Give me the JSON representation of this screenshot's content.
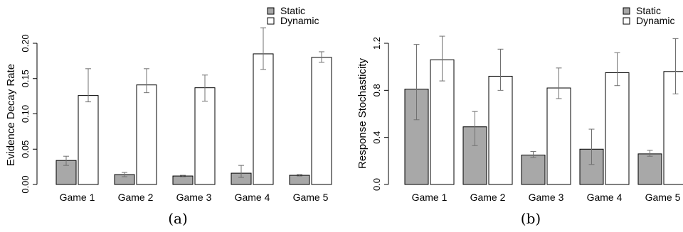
{
  "colors": {
    "static": "#a8a8a8",
    "dynamic": "#ffffff",
    "stroke": "#000000",
    "error": "#707070"
  },
  "chart_data": [
    {
      "type": "bar",
      "caption": "(a)",
      "ylabel": "Evidence Decay Rate",
      "categories": [
        "Game 1",
        "Game 2",
        "Game 3",
        "Game 4",
        "Game 5"
      ],
      "ylim": [
        0,
        0.2
      ],
      "yticks": [
        0.0,
        0.05,
        0.1,
        0.15,
        0.2
      ],
      "ytick_labels": [
        "0.00",
        "0.05",
        "0.10",
        "0.15",
        "0.20"
      ],
      "legend": {
        "placement": "top-right",
        "entries": [
          "Static",
          "Dynamic"
        ]
      },
      "series": [
        {
          "name": "Static",
          "values": [
            0.034,
            0.014,
            0.012,
            0.016,
            0.013
          ],
          "err_low": [
            0.027,
            0.011,
            0.011,
            0.01,
            0.012
          ],
          "err_high": [
            0.04,
            0.017,
            0.013,
            0.027,
            0.014
          ]
        },
        {
          "name": "Dynamic",
          "values": [
            0.126,
            0.141,
            0.137,
            0.185,
            0.18
          ],
          "err_low": [
            0.117,
            0.13,
            0.118,
            0.163,
            0.173
          ],
          "err_high": [
            0.164,
            0.164,
            0.155,
            0.222,
            0.188
          ]
        }
      ]
    },
    {
      "type": "bar",
      "caption": "(b)",
      "ylabel": "Response Stochasticity",
      "categories": [
        "Game 1",
        "Game 2",
        "Game 3",
        "Game 4",
        "Game 5"
      ],
      "ylim": [
        0,
        1.2
      ],
      "yticks": [
        0.0,
        0.4,
        0.8,
        1.2
      ],
      "ytick_labels": [
        "0.0",
        "0.4",
        "0.8",
        "1.2"
      ],
      "legend": {
        "placement": "top-right",
        "entries": [
          "Static",
          "Dynamic"
        ]
      },
      "series": [
        {
          "name": "Static",
          "values": [
            0.81,
            0.49,
            0.25,
            0.3,
            0.26
          ],
          "err_low": [
            0.55,
            0.33,
            0.23,
            0.17,
            0.24
          ],
          "err_high": [
            1.19,
            0.62,
            0.28,
            0.47,
            0.29
          ]
        },
        {
          "name": "Dynamic",
          "values": [
            1.06,
            0.92,
            0.82,
            0.95,
            0.96
          ],
          "err_low": [
            0.88,
            0.8,
            0.73,
            0.84,
            0.77
          ],
          "err_high": [
            1.26,
            1.15,
            0.99,
            1.12,
            1.24
          ]
        }
      ]
    }
  ]
}
